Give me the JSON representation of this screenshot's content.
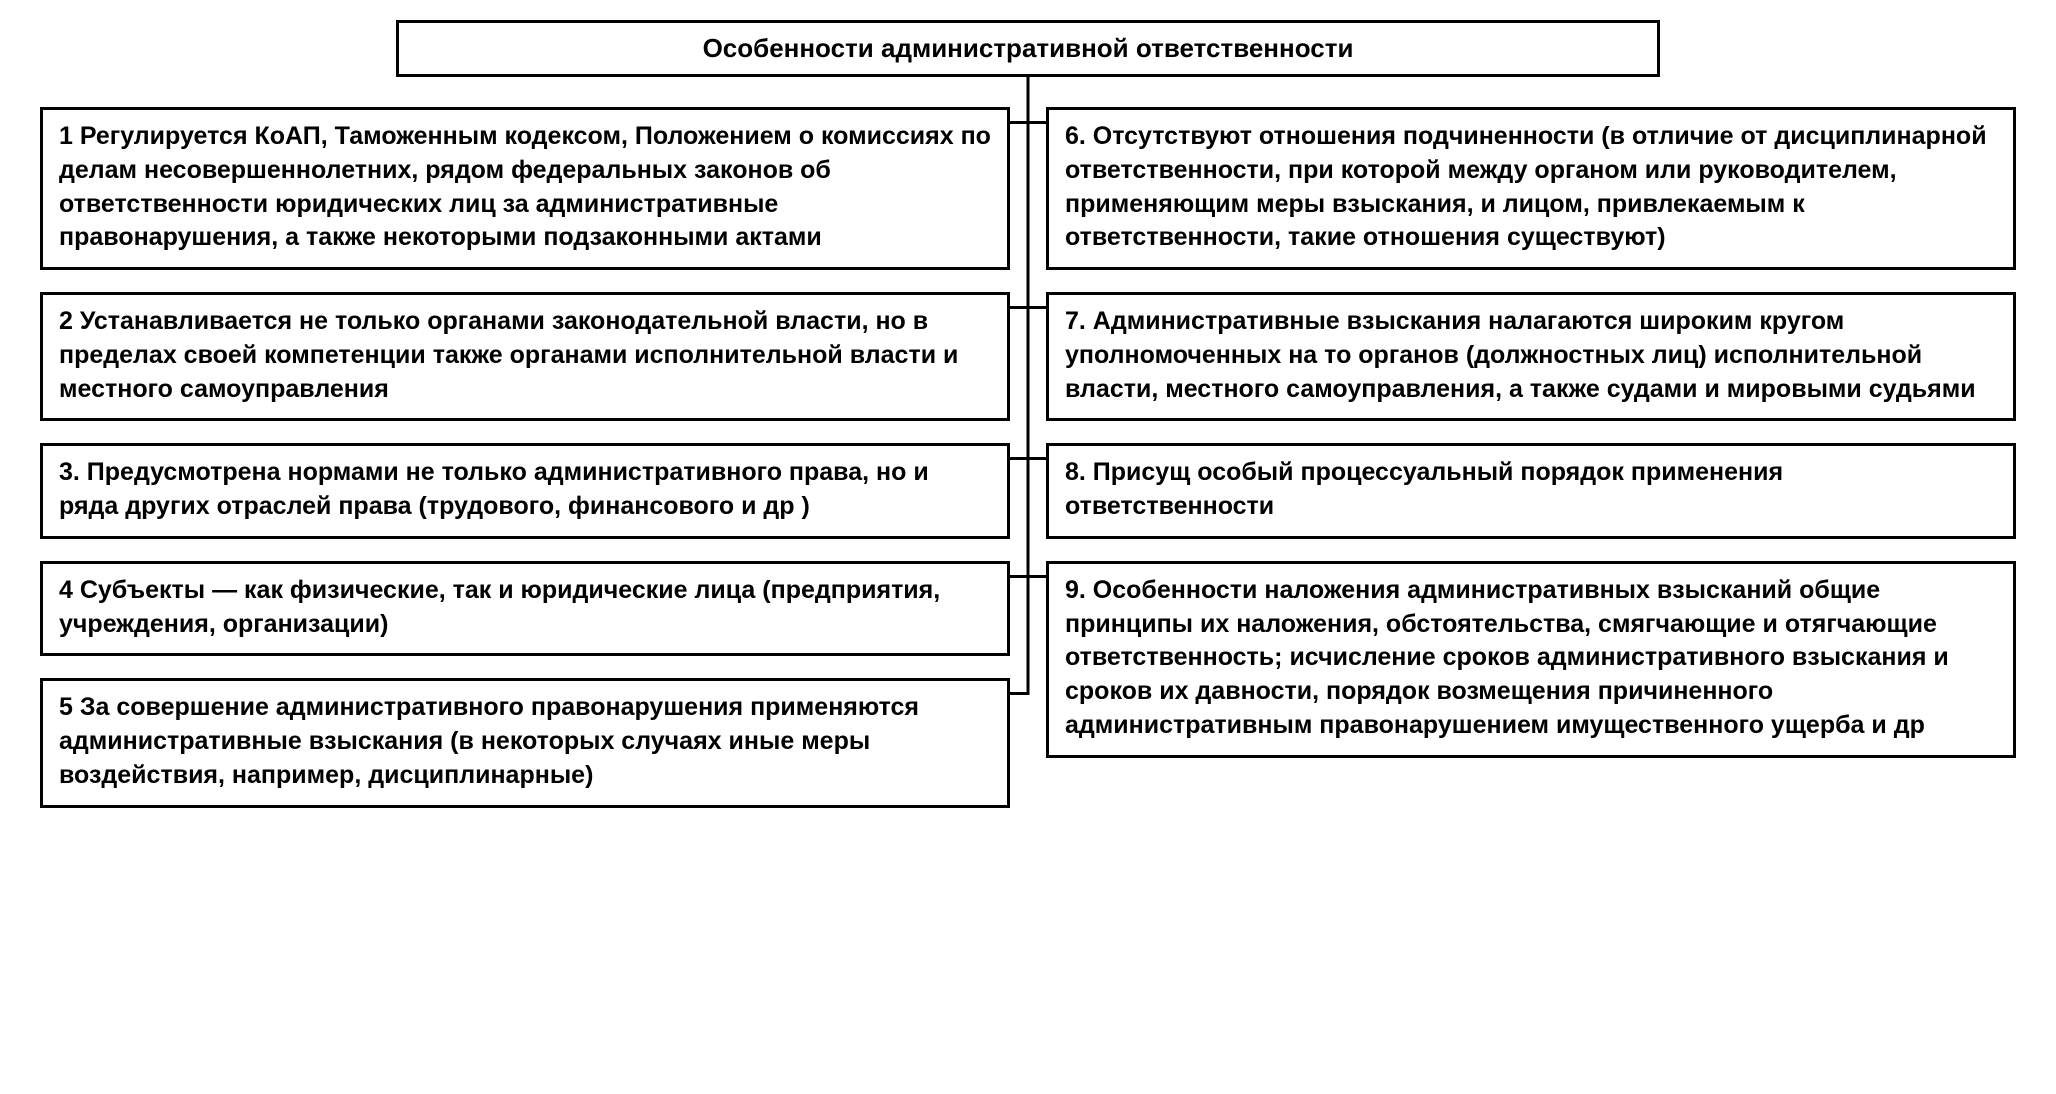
{
  "diagram": {
    "type": "tree",
    "title": "Особенности административной ответственности",
    "border_color": "#000000",
    "background_color": "#ffffff",
    "text_color": "#000000",
    "border_width": 3,
    "title_fontsize": 26,
    "node_fontsize": 25,
    "font_weight": "bold",
    "line_height": 1.35,
    "column_gap": 36,
    "row_gap": 22,
    "left_column": [
      "1 Регулируется КоАП, Таможенным кодексом, Положением о комиссиях по делам несовершеннолетних, рядом федеральных законов об ответственности юридических лиц за административные правонарушения, а также некоторыми подзаконными актами",
      "2 Устанавливается не только органами законодательной власти, но в пределах своей компетенции также органами исполнительной власти и местного самоуправления",
      "3. Предусмотрена нормами не только административного права, но и ряда других отраслей права (трудового, финансового и др )",
      "4 Субъекты — как физические, так и юридические лица (предприятия, учреждения, организации)",
      "5 За совершение административного правонарушения применяются административные взыскания (в некоторых случаях иные меры воздействия, например, дисциплинарные)"
    ],
    "right_column": [
      "6. Отсутствуют отношения подчиненности (в отличие от дисциплинарной ответственности, при которой между органом или руководителем, применяющим меры взыскания, и лицом, привлекаемым к ответственности, такие отношения существуют)",
      "7. Административные взыскания налагаются широким кругом уполномоченных на то органов (должностных лиц) исполнительной власти, местного самоуправления, а также судами и мировыми судьями",
      "8. Присущ особый процессуальный порядок применения ответственности",
      "9. Особенности наложения административных взысканий общие принципы их наложения, обстоятельства, смягчающие и отягчающие ответственность; исчисление сроков административного взыскания и сроков их давности, порядок возмещения причиненного административным правонарушением имущественного ущерба и др"
    ]
  }
}
